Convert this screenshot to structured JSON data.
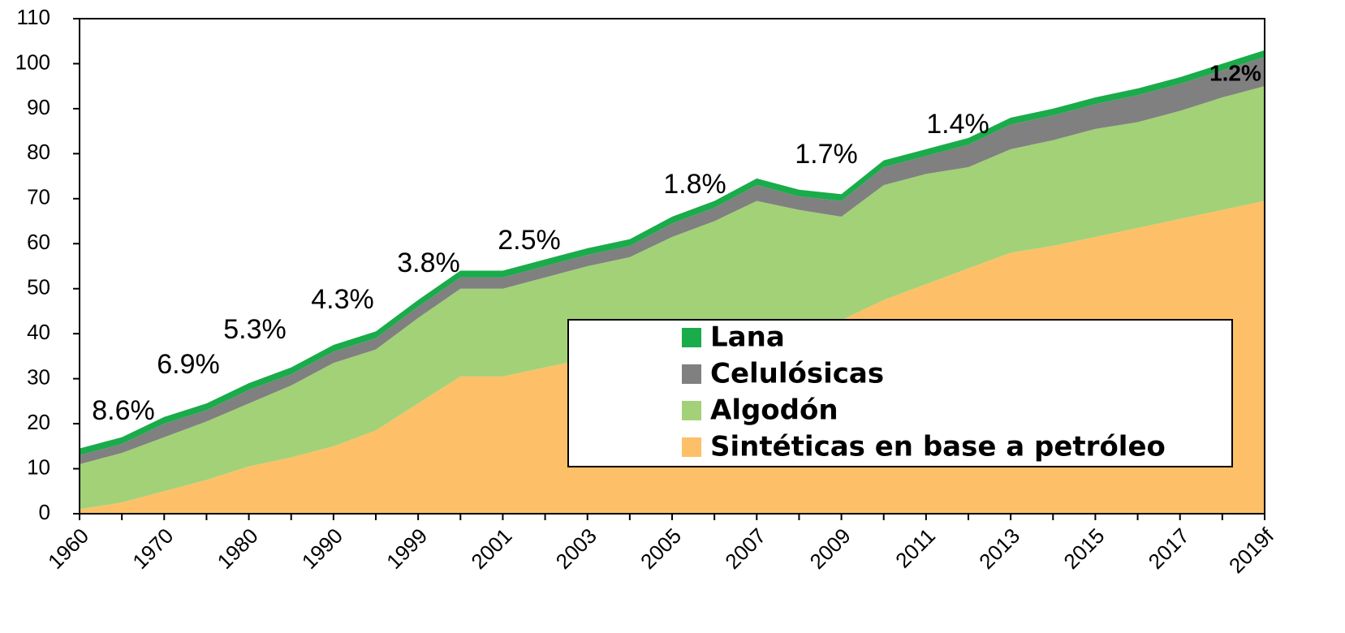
{
  "chart_data": {
    "type": "stacked_area",
    "categories": [
      "1960",
      null,
      "1970",
      null,
      "1980",
      null,
      "1990",
      null,
      "1999",
      null,
      "2001",
      null,
      "2003",
      null,
      "2005",
      null,
      "2007",
      null,
      "2009",
      null,
      "2011",
      null,
      "2013",
      null,
      "2015",
      null,
      "2017",
      null,
      "2019f"
    ],
    "series": [
      {
        "name": "Sintéticas en base a petróleo",
        "color": "#fdc068",
        "values": [
          1,
          2.5,
          5,
          7.5,
          10.5,
          12.5,
          15,
          18.5,
          24.5,
          30.5,
          30.5,
          32.5,
          34.5,
          37,
          39,
          41,
          42,
          42.5,
          43,
          47.5,
          51,
          54.5,
          58,
          59.5,
          61.5,
          63.5,
          65.5,
          67.5,
          69.5
        ]
      },
      {
        "name": "Algodón",
        "color": "#a3d177",
        "values": [
          10,
          11,
          12,
          13,
          14,
          16,
          18.5,
          18,
          19,
          19.5,
          19.5,
          20,
          20.5,
          20,
          22.5,
          24,
          27.5,
          25,
          23,
          25.5,
          24.5,
          22.5,
          23,
          23.5,
          24,
          23.5,
          24,
          25,
          25.5
        ]
      },
      {
        "name": "Celulósicas",
        "color": "#808080",
        "values": [
          2,
          2,
          3,
          2.5,
          3,
          2.5,
          2.5,
          2.5,
          2.5,
          2.5,
          2.5,
          2.5,
          2.5,
          2.5,
          3,
          3,
          3.5,
          3,
          3.5,
          4,
          4,
          5,
          5.5,
          5.5,
          5.5,
          6,
          6,
          6,
          6.5
        ]
      },
      {
        "name": "Lana",
        "color": "#1aab4b",
        "values": [
          1.5,
          1.5,
          1.5,
          1.5,
          1.5,
          1.5,
          1.5,
          1.5,
          1.5,
          1.5,
          1.5,
          1.5,
          1.5,
          1.5,
          1.5,
          1.5,
          1.5,
          1.5,
          1.5,
          1.5,
          1.5,
          1.5,
          1.5,
          1.5,
          1.5,
          1.5,
          1.5,
          1.5,
          1.5
        ]
      }
    ],
    "annotations": [
      "8.6%",
      "6.9%",
      "5.3%",
      "4.3%",
      "3.8%",
      "2.5%",
      "1.8%",
      "1.7%",
      "1.4%",
      "1.2%"
    ],
    "ylim": [
      0,
      110
    ],
    "yticks": [
      0,
      10,
      20,
      30,
      40,
      50,
      60,
      70,
      80,
      90,
      100,
      110
    ],
    "legend": "lower right"
  }
}
